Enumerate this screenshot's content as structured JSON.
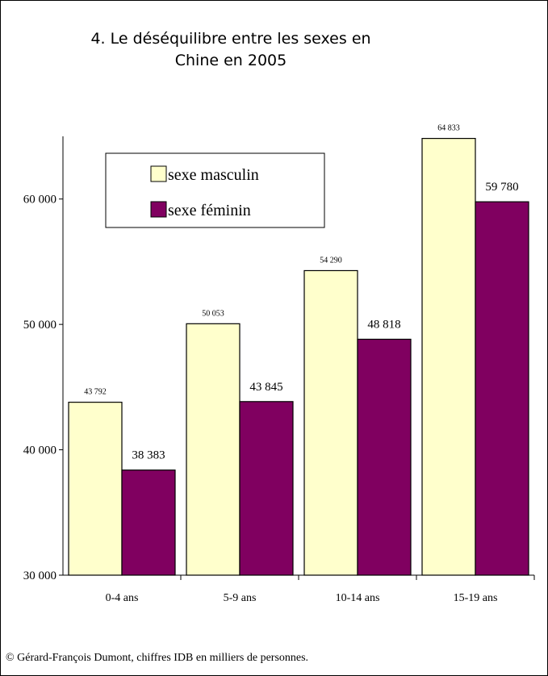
{
  "chart_data": {
    "type": "bar",
    "title_lines": [
      "4. Le déséquilibre entre les sexes en",
      "Chine en 2005"
    ],
    "categories": [
      "0-4 ans",
      "5-9 ans",
      "10-14 ans",
      "15-19 ans"
    ],
    "series": [
      {
        "name": "sexe masculin",
        "color": "#FFFFCC",
        "values": [
          43792,
          50053,
          54290,
          64833
        ],
        "labels": [
          "43 792",
          "50 053",
          "54 290",
          "64 833"
        ]
      },
      {
        "name": "sexe féminin",
        "color": "#800060",
        "values": [
          38383,
          43845,
          48818,
          59780
        ],
        "labels": [
          "38 383",
          "43 845",
          "48 818",
          "59 780"
        ]
      }
    ],
    "ylim": [
      30000,
      65000
    ],
    "y_ticks": [
      30000,
      40000,
      50000,
      60000
    ],
    "y_tick_labels": [
      "30 000",
      "40 000",
      "50 000",
      "60 000"
    ],
    "xlabel": "",
    "ylabel": "",
    "grid": false,
    "legend_position": "top-left"
  },
  "credit": "© Gérard-François Dumont, chiffres IDB en milliers de personnes."
}
